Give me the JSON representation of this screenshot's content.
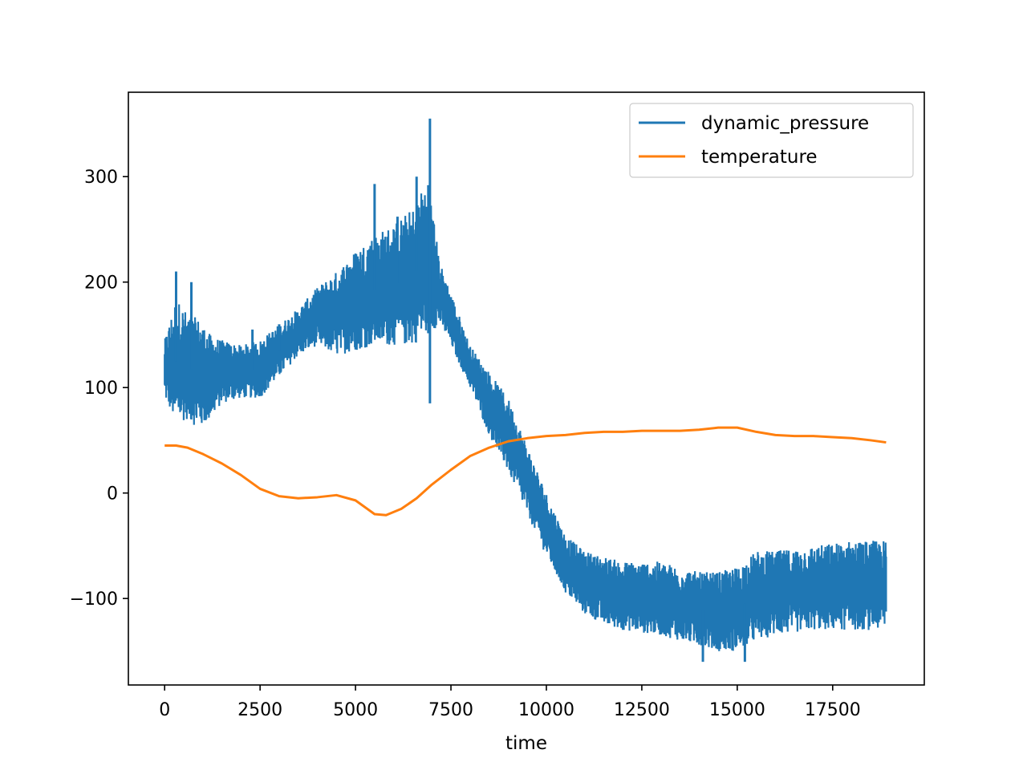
{
  "chart_data": {
    "type": "line",
    "title": "",
    "xlabel": "time",
    "ylabel": "",
    "xlim": [
      -950,
      19900
    ],
    "ylim": [
      -182,
      380
    ],
    "x_ticks": [
      0,
      2500,
      5000,
      7500,
      10000,
      12500,
      15000,
      17500
    ],
    "x_tick_labels": [
      "0",
      "2500",
      "5000",
      "7500",
      "10000",
      "12500",
      "15000",
      "17500"
    ],
    "y_ticks": [
      -100,
      0,
      100,
      200,
      300
    ],
    "y_tick_labels": [
      "−100",
      "0",
      "100",
      "200",
      "300"
    ],
    "grid": false,
    "legend": "top-right",
    "series": [
      {
        "name": "dynamic_pressure",
        "color": "#1f77b4",
        "style": "noisy-band",
        "x": [
          0,
          300,
          600,
          900,
          1200,
          1500,
          2000,
          2500,
          3000,
          3500,
          4000,
          4500,
          5000,
          5500,
          6000,
          6500,
          6900,
          7200,
          7500,
          8000,
          8500,
          9000,
          9500,
          10000,
          10500,
          11000,
          11500,
          12000,
          13000,
          14000,
          14500,
          15000,
          15500,
          16000,
          17000,
          18000,
          18900
        ],
        "low": [
          90,
          65,
          70,
          60,
          70,
          85,
          90,
          90,
          110,
          130,
          140,
          130,
          135,
          140,
          140,
          140,
          150,
          160,
          140,
          100,
          55,
          20,
          -20,
          -60,
          -95,
          -115,
          -125,
          -130,
          -135,
          -145,
          -150,
          -150,
          -140,
          -135,
          -130,
          -130,
          -130
        ],
        "high": [
          145,
          185,
          170,
          165,
          150,
          145,
          140,
          145,
          160,
          175,
          195,
          210,
          230,
          245,
          255,
          270,
          300,
          220,
          190,
          140,
          115,
          90,
          45,
          0,
          -40,
          -55,
          -60,
          -65,
          -65,
          -75,
          -75,
          -70,
          -55,
          -55,
          -50,
          -45,
          -45
        ],
        "spikes": [
          [
            300,
            210
          ],
          [
            700,
            200
          ],
          [
            2300,
            155
          ],
          [
            5500,
            293
          ],
          [
            6100,
            262
          ],
          [
            6600,
            300
          ],
          [
            6950,
            355
          ],
          [
            6950,
            85
          ],
          [
            3000,
            160
          ],
          [
            14100,
            -160
          ],
          [
            15200,
            -160
          ]
        ]
      },
      {
        "name": "temperature",
        "color": "#ff7f0e",
        "style": "line",
        "x": [
          0,
          300,
          600,
          1000,
          1500,
          2000,
          2500,
          3000,
          3500,
          4000,
          4500,
          5000,
          5500,
          5800,
          6200,
          6600,
          7000,
          7500,
          8000,
          8500,
          9000,
          9500,
          10000,
          10500,
          11000,
          11500,
          12000,
          12500,
          13000,
          13500,
          14000,
          14500,
          15000,
          15500,
          16000,
          16500,
          17000,
          17500,
          18000,
          18500,
          18900
        ],
        "values": [
          45,
          45,
          43,
          37,
          28,
          17,
          4,
          -3,
          -5,
          -4,
          -2,
          -7,
          -20,
          -21,
          -15,
          -5,
          8,
          22,
          35,
          43,
          49,
          52,
          54,
          55,
          57,
          58,
          58,
          59,
          59,
          59,
          60,
          62,
          62,
          58,
          55,
          54,
          54,
          53,
          52,
          50,
          48
        ]
      }
    ]
  }
}
